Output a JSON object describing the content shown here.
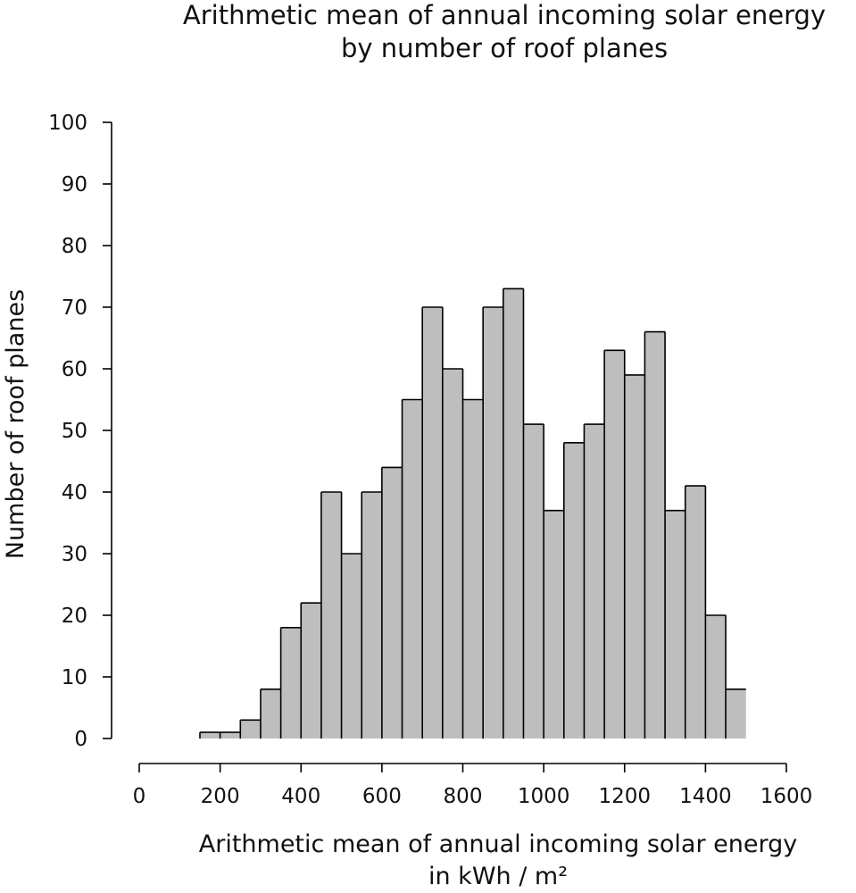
{
  "chart_data": {
    "type": "bar",
    "title_lines": [
      "Arithmetic mean of annual incoming solar energy",
      "by number of roof planes"
    ],
    "xlabel_lines": [
      "Arithmetic mean of annual incoming solar energy",
      "in kWh / m²"
    ],
    "ylabel": "Number of roof planes",
    "xlim": [
      0,
      1600
    ],
    "ylim": [
      0,
      100
    ],
    "x_ticks": [
      0,
      200,
      400,
      600,
      800,
      1000,
      1200,
      1400,
      1600
    ],
    "y_ticks": [
      0,
      10,
      20,
      30,
      40,
      50,
      60,
      70,
      80,
      90,
      100
    ],
    "bin_width": 50,
    "bin_edges": [
      150,
      200,
      250,
      300,
      350,
      400,
      450,
      500,
      550,
      600,
      650,
      700,
      750,
      800,
      850,
      900,
      950,
      1000,
      1050,
      1100,
      1150,
      1200,
      1250,
      1300,
      1350,
      1400,
      1450,
      1500
    ],
    "values": [
      1,
      1,
      3,
      8,
      18,
      22,
      40,
      30,
      40,
      44,
      55,
      70,
      60,
      55,
      70,
      73,
      51,
      37,
      48,
      51,
      63,
      59,
      66,
      37,
      41,
      20,
      8
    ],
    "bar_color": "#bebebe",
    "edge_color": "#000000",
    "grid": false,
    "legend": "none"
  }
}
